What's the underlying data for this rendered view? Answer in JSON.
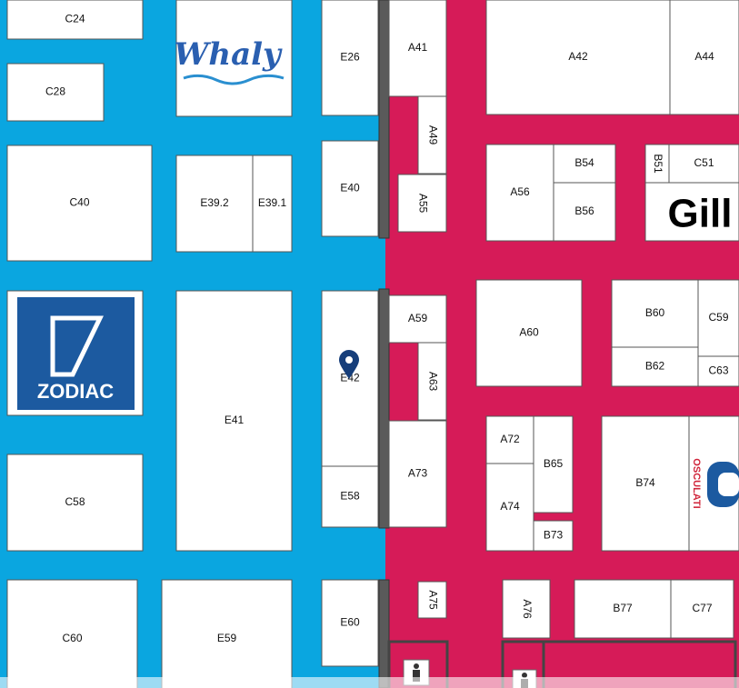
{
  "booths": [
    "C24",
    "C28",
    "C40",
    "C58",
    "C60",
    "E39.2",
    "E39.1",
    "E41",
    "E59",
    "E26",
    "E40",
    "E42",
    "E58",
    "E60",
    "A41",
    "A49",
    "A55",
    "A42",
    "A44",
    "A56",
    "B54",
    "B56",
    "B51",
    "C51",
    "A59",
    "A63",
    "A73",
    "A60",
    "B60",
    "C59",
    "B62",
    "C63",
    "A72",
    "A74",
    "B65",
    "B73",
    "B74",
    "A75",
    "A76",
    "B77",
    "C77"
  ],
  "logos": [
    "Whaly",
    "ZODIAC",
    "Gill",
    "OSCULATI"
  ]
}
